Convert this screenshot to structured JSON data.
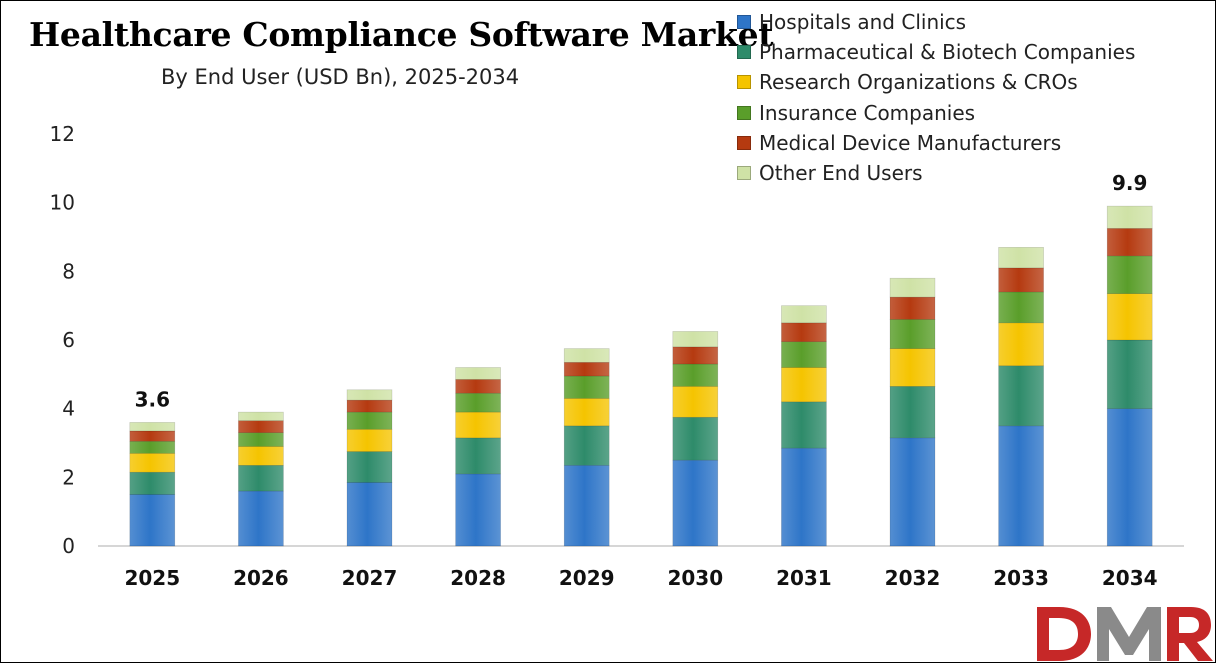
{
  "chart_data": {
    "type": "bar",
    "stacked": true,
    "title": "Healthcare Compliance Software Market",
    "subtitle": "By End User (USD Bn), 2025-2034",
    "xlabel": "",
    "ylabel": "",
    "ylim": [
      0,
      12
    ],
    "yticks": [
      0,
      2,
      4,
      6,
      8,
      10,
      12
    ],
    "grid": false,
    "legend_position": "top-right",
    "categories": [
      "2025",
      "2026",
      "2027",
      "2028",
      "2029",
      "2030",
      "2031",
      "2032",
      "2033",
      "2034"
    ],
    "series": [
      {
        "name": "Hospitals and Clinics",
        "color": "#2e75c8",
        "values": [
          1.5,
          1.6,
          1.85,
          2.1,
          2.35,
          2.5,
          2.85,
          3.15,
          3.5,
          4.0
        ]
      },
      {
        "name": "Pharmaceutical & Biotech Companies",
        "color": "#2e8b6a",
        "values": [
          0.65,
          0.75,
          0.9,
          1.05,
          1.15,
          1.25,
          1.35,
          1.5,
          1.75,
          2.0
        ]
      },
      {
        "name": "Research Organizations & CROs",
        "color": "#f5c400",
        "values": [
          0.55,
          0.55,
          0.65,
          0.75,
          0.8,
          0.9,
          1.0,
          1.1,
          1.25,
          1.35
        ]
      },
      {
        "name": "Insurance Companies",
        "color": "#5a9e2a",
        "values": [
          0.35,
          0.4,
          0.5,
          0.55,
          0.65,
          0.65,
          0.75,
          0.85,
          0.9,
          1.1
        ]
      },
      {
        "name": "Medical Device Manufacturers",
        "color": "#b53a10",
        "values": [
          0.3,
          0.35,
          0.35,
          0.4,
          0.4,
          0.5,
          0.55,
          0.65,
          0.7,
          0.8
        ]
      },
      {
        "name": "Other End Users",
        "color": "#cfe2a6",
        "values": [
          0.25,
          0.25,
          0.3,
          0.35,
          0.4,
          0.45,
          0.5,
          0.55,
          0.6,
          0.65
        ]
      }
    ],
    "totals": [
      3.6,
      3.9,
      4.55,
      5.2,
      5.75,
      6.25,
      7.0,
      7.8,
      8.7,
      9.9
    ],
    "annotations": [
      {
        "category": "2025",
        "text": "3.6"
      },
      {
        "category": "2034",
        "text": "9.9"
      }
    ]
  },
  "branding": {
    "logo_text": "DMR",
    "logo_colors": [
      "#c62828",
      "#8a8a8a"
    ]
  }
}
